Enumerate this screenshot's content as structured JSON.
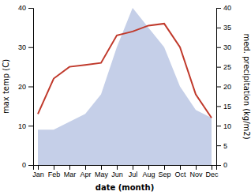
{
  "chart_data": {
    "type": "line",
    "xlabel": "date (month)",
    "ylabel": "max temp (C)",
    "y2label": "med. precipitation (kg/m2)",
    "categories": [
      "Jan",
      "Feb",
      "Mar",
      "Apr",
      "May",
      "Jun",
      "Jul",
      "Aug",
      "Sep",
      "Oct",
      "Nov",
      "Dec"
    ],
    "series": [
      {
        "type": "area",
        "color": "#c5cfe8",
        "axis": "y2",
        "values": [
          9,
          9,
          11,
          13,
          18,
          30,
          40,
          35,
          30,
          20,
          14,
          12
        ]
      },
      {
        "type": "line",
        "color": "#c0392b",
        "values": [
          13,
          22,
          25,
          25.5,
          26,
          33,
          34,
          35.5,
          36,
          30,
          18,
          12
        ]
      }
    ],
    "ylim": [
      0,
      40
    ],
    "yticks": [
      0,
      10,
      20,
      30,
      40
    ],
    "y2lim": [
      0,
      40
    ],
    "y2ticks": [
      0,
      5,
      10,
      15,
      20,
      25,
      30,
      35,
      40
    ]
  }
}
